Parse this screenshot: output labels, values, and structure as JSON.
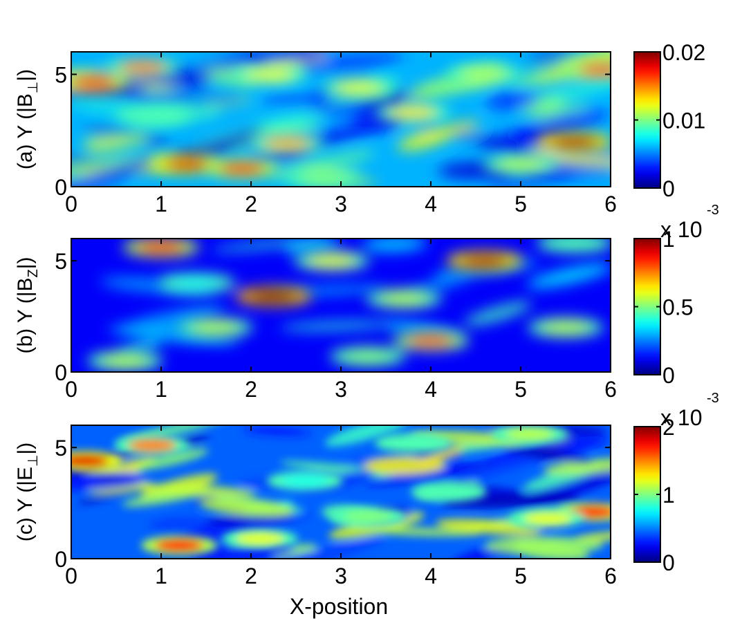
{
  "chart_data": [
    {
      "type": "heatmap",
      "panel": "a",
      "ylabel": {
        "prefix": "(a) Y (|B",
        "sub": "⊥",
        "suffix": "|)"
      },
      "xlabel": "",
      "xlim": [
        0,
        6.0
      ],
      "ylim": [
        0,
        6.0
      ],
      "xticks": [
        "0",
        "1",
        "2",
        "3",
        "4",
        "5",
        "6"
      ],
      "yticks": [
        "0",
        "5"
      ],
      "colormap": "jet",
      "colorbar": {
        "range": [
          0,
          0.02
        ],
        "ticks": [
          "0",
          "0.01",
          "0.02"
        ],
        "multiplier": ""
      },
      "features": [
        {
          "x": 0.25,
          "y": 4.6,
          "level": 0.85
        },
        {
          "x": 0.8,
          "y": 5.3,
          "level": 0.75
        },
        {
          "x": 1.3,
          "y": 1.0,
          "level": 0.9
        },
        {
          "x": 1.9,
          "y": 0.8,
          "level": 0.85
        },
        {
          "x": 2.4,
          "y": 1.9,
          "level": 0.7
        },
        {
          "x": 2.2,
          "y": 5.0,
          "level": 0.6
        },
        {
          "x": 3.2,
          "y": 4.4,
          "level": 0.6
        },
        {
          "x": 3.8,
          "y": 3.3,
          "level": 0.65
        },
        {
          "x": 4.6,
          "y": 5.0,
          "level": 0.55
        },
        {
          "x": 5.6,
          "y": 2.0,
          "level": 0.95
        },
        {
          "x": 5.0,
          "y": 1.0,
          "level": 0.55
        },
        {
          "x": 5.9,
          "y": 5.2,
          "level": 0.8
        },
        {
          "x": 2.8,
          "y": 0.4,
          "level": 0.5
        },
        {
          "x": 0.9,
          "y": 3.2,
          "level": 0.45
        }
      ]
    },
    {
      "type": "heatmap",
      "panel": "b",
      "ylabel": {
        "prefix": "(b) Y (|B",
        "sub": "Z",
        "suffix": "|)"
      },
      "xlabel": "",
      "xlim": [
        0,
        6.0
      ],
      "ylim": [
        0,
        6.0
      ],
      "xticks": [
        "0",
        "1",
        "2",
        "3",
        "4",
        "5",
        "6"
      ],
      "yticks": [
        "0",
        "5"
      ],
      "colormap": "jet",
      "colorbar": {
        "range": [
          0,
          0.001
        ],
        "ticks": [
          "0",
          "0.5",
          "1"
        ],
        "multiplier": "x 10",
        "exponent": "-3"
      },
      "features": [
        {
          "x": 1.0,
          "y": 5.6,
          "level": 0.85
        },
        {
          "x": 2.25,
          "y": 3.4,
          "level": 1.0
        },
        {
          "x": 4.6,
          "y": 5.0,
          "level": 0.95
        },
        {
          "x": 4.0,
          "y": 1.4,
          "level": 0.8
        },
        {
          "x": 2.9,
          "y": 5.0,
          "level": 0.6
        },
        {
          "x": 3.7,
          "y": 3.3,
          "level": 0.55
        },
        {
          "x": 1.6,
          "y": 2.0,
          "level": 0.55
        },
        {
          "x": 0.6,
          "y": 0.5,
          "level": 0.55
        },
        {
          "x": 3.3,
          "y": 0.7,
          "level": 0.5
        },
        {
          "x": 5.5,
          "y": 2.0,
          "level": 0.55
        },
        {
          "x": 1.4,
          "y": 4.0,
          "level": 0.4
        },
        {
          "x": 5.6,
          "y": 5.8,
          "level": 0.45
        }
      ]
    },
    {
      "type": "heatmap",
      "panel": "c",
      "ylabel": {
        "prefix": "(c) Y (|E",
        "sub": "⊥",
        "suffix": "|)"
      },
      "xlabel": "X-position",
      "xlim": [
        0,
        6.0
      ],
      "ylim": [
        0,
        6.0
      ],
      "xticks": [
        "0",
        "1",
        "2",
        "3",
        "4",
        "5",
        "6"
      ],
      "yticks": [
        "0",
        "5"
      ],
      "colormap": "jet",
      "colorbar": {
        "range": [
          0,
          0.002
        ],
        "ticks": [
          "0",
          "1",
          "2"
        ],
        "multiplier": "x 10",
        "exponent": "-3"
      },
      "features": [
        {
          "x": 0.15,
          "y": 4.4,
          "level": 0.9
        },
        {
          "x": 0.9,
          "y": 5.1,
          "level": 0.75
        },
        {
          "x": 1.2,
          "y": 0.6,
          "level": 0.85
        },
        {
          "x": 2.1,
          "y": 0.9,
          "level": 0.6
        },
        {
          "x": 5.8,
          "y": 2.1,
          "level": 0.85
        },
        {
          "x": 5.1,
          "y": 5.6,
          "level": 0.55
        },
        {
          "x": 3.3,
          "y": 1.9,
          "level": 0.5
        },
        {
          "x": 4.2,
          "y": 3.0,
          "level": 0.45
        },
        {
          "x": 2.6,
          "y": 3.5,
          "level": 0.4
        },
        {
          "x": 5.3,
          "y": 1.8,
          "level": 0.6
        },
        {
          "x": 3.8,
          "y": 5.2,
          "level": 0.45
        }
      ]
    }
  ]
}
